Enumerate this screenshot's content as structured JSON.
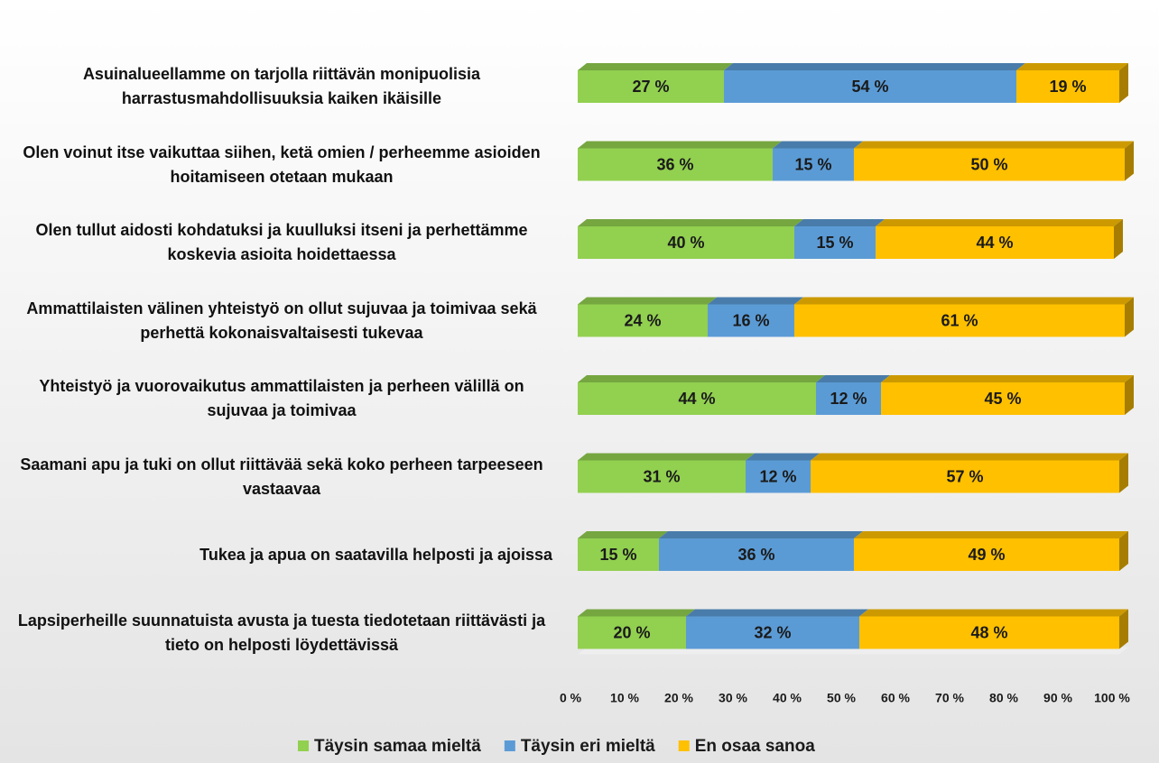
{
  "chart_data": {
    "type": "stacked_barh",
    "categories": [
      "Asuinalueellamme on tarjolla riittävän monipuolisia harrastusmahdollisuuksia kaiken ikäisille",
      "Olen voinut itse vaikuttaa siihen, ketä omien / perheemme asioiden hoitamiseen otetaan mukaan",
      "Olen tullut aidosti kohdatuksi ja kuulluksi itseni ja perhettämme koskevia asioita hoidettaessa",
      "Ammattilaisten välinen yhteistyö on ollut sujuvaa ja toimivaa sekä perhettä kokonaisvaltaisesti tukevaa",
      "Yhteistyö ja vuorovaikutus ammattilaisten ja perheen välillä on sujuvaa ja toimivaa",
      "Saamani apu ja tuki on ollut riittävää sekä koko perheen tarpeeseen vastaavaa",
      "Tukea ja apua on saatavilla helposti ja ajoissa",
      "Lapsiperheille suunnatuista avusta ja tuesta tiedotetaan riittävästi ja tieto on helposti löydettävissä"
    ],
    "series": [
      {
        "name": "Täysin samaa mieltä",
        "color": "#92d050",
        "values": [
          27,
          36,
          40,
          24,
          44,
          31,
          15,
          20
        ],
        "value_labels": [
          "27 %",
          "36 %",
          "40 %",
          "24 %",
          "44 %",
          "31 %",
          "15 %",
          "20 %"
        ]
      },
      {
        "name": "Täysin eri mieltä",
        "color": "#5b9bd5",
        "values": [
          54,
          15,
          15,
          16,
          12,
          12,
          36,
          32
        ],
        "value_labels": [
          "54 %",
          "15 %",
          "15 %",
          "16 %",
          "12 %",
          "12 %",
          "36 %",
          "32 %"
        ]
      },
      {
        "name": "En osaa sanoa",
        "color": "#ffc000",
        "values": [
          19,
          50,
          44,
          61,
          45,
          57,
          49,
          48
        ],
        "value_labels": [
          "19 %",
          "50 %",
          "44 %",
          "61 %",
          "45 %",
          "57 %",
          "49 %",
          "48 %"
        ]
      }
    ],
    "xlim": [
      0,
      100
    ],
    "xticks": [
      {
        "value": 0,
        "label": "0 %"
      },
      {
        "value": 10,
        "label": "10 %"
      },
      {
        "value": 20,
        "label": "20 %"
      },
      {
        "value": 30,
        "label": "30 %"
      },
      {
        "value": 40,
        "label": "40 %"
      },
      {
        "value": 50,
        "label": "50 %"
      },
      {
        "value": 60,
        "label": "60 %"
      },
      {
        "value": 70,
        "label": "70 %"
      },
      {
        "value": 80,
        "label": "80 %"
      },
      {
        "value": 90,
        "label": "90 %"
      },
      {
        "value": 100,
        "label": "100 %"
      }
    ],
    "legend": "bottom"
  }
}
